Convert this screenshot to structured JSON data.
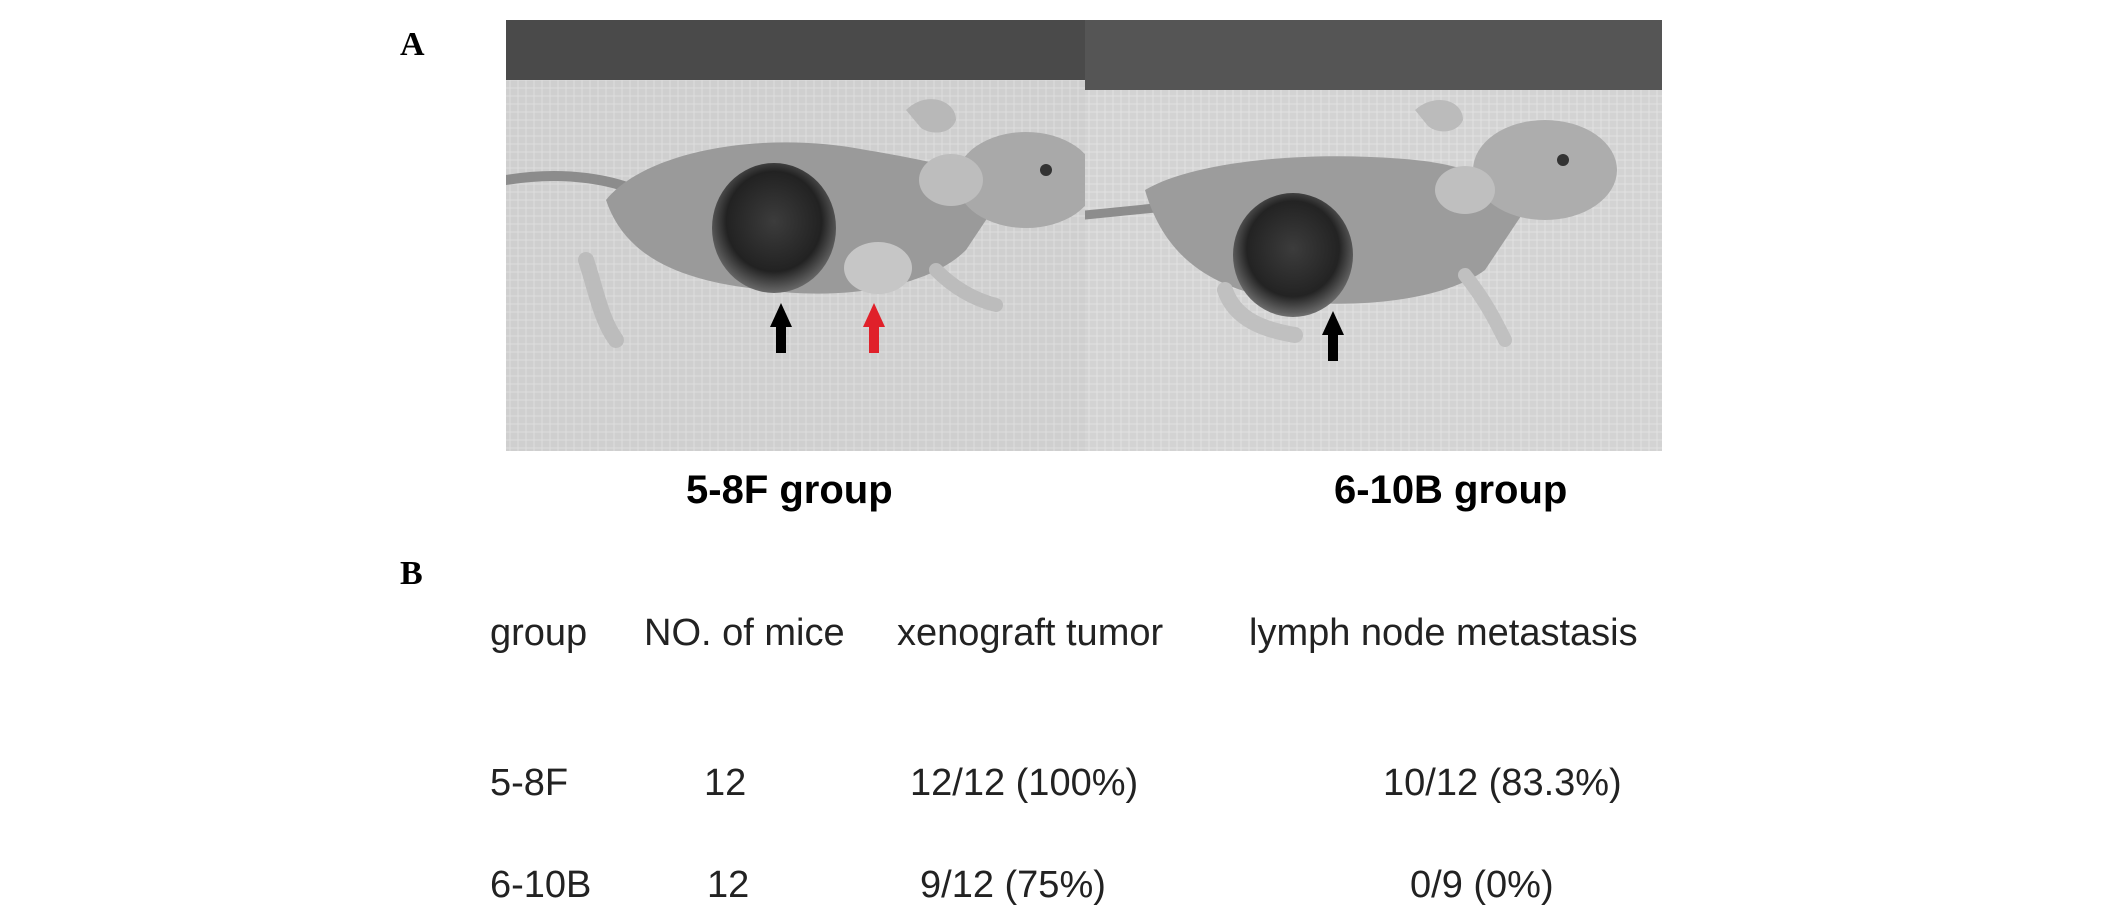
{
  "panel_a": {
    "letter": "A"
  },
  "panel_b": {
    "letter": "B"
  },
  "photos": [
    {
      "caption": "5-8F group",
      "arrows": [
        "black",
        "red"
      ]
    },
    {
      "caption": "6-10B group",
      "arrows": [
        "black"
      ]
    }
  ],
  "colors": {
    "black_arrow": "#000000",
    "red_arrow": "#e0202a"
  },
  "table": {
    "headers": [
      "group",
      "NO. of mice",
      "xenograft tumor",
      "lymph node metastasis"
    ],
    "rows": [
      [
        "5-8F",
        "12",
        "12/12 (100%)",
        "10/12 (83.3%)"
      ],
      [
        "6-10B",
        "12",
        "9/12 (75%)",
        "0/9 (0%)"
      ]
    ]
  }
}
